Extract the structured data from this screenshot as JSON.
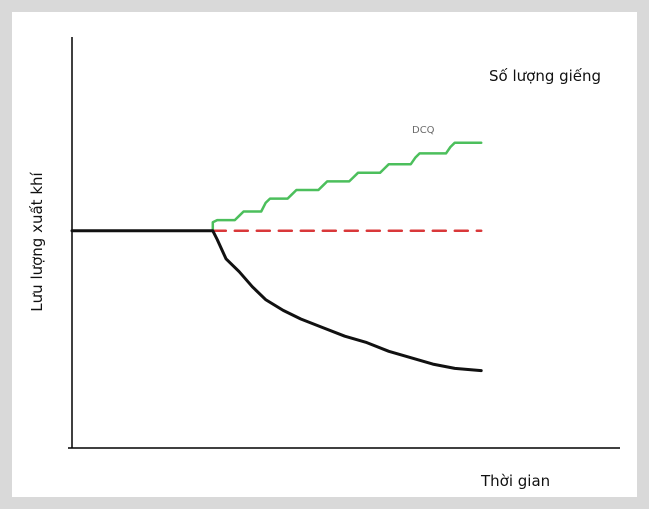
{
  "chart_data": {
    "type": "line",
    "xlabel": "Thời gian",
    "ylabel": "Lưu lượng xuất khí",
    "x_ticks": [],
    "y_ticks": [],
    "xlim": [
      0,
      100
    ],
    "ylim": [
      0,
      100
    ],
    "grid": false,
    "series": [
      {
        "name": "Số lượng giếng",
        "color": "#4cbf5c",
        "style": "solid",
        "points": [
          [
            32,
            101
          ],
          [
            32,
            105
          ],
          [
            33,
            106
          ],
          [
            37,
            106
          ],
          [
            38,
            108
          ],
          [
            39,
            110
          ],
          [
            43,
            110
          ],
          [
            44,
            114
          ],
          [
            45,
            116
          ],
          [
            49,
            116
          ],
          [
            50,
            118
          ],
          [
            51,
            120
          ],
          [
            56,
            120
          ],
          [
            57,
            122
          ],
          [
            58,
            124
          ],
          [
            63,
            124
          ],
          [
            64,
            126
          ],
          [
            65,
            128
          ],
          [
            70,
            128
          ],
          [
            71,
            130
          ],
          [
            72,
            132
          ],
          [
            77,
            132
          ],
          [
            78,
            135
          ],
          [
            79,
            137
          ],
          [
            85,
            137
          ],
          [
            86,
            140
          ],
          [
            87,
            142
          ],
          [
            93,
            142
          ]
        ]
      },
      {
        "name": "DCQ",
        "color": "#d9383a",
        "style": "dashed",
        "points": [
          [
            32,
            101
          ],
          [
            93,
            101
          ]
        ]
      },
      {
        "name": "",
        "color": "#111111",
        "style": "solid",
        "points": [
          [
            0,
            101
          ],
          [
            32,
            101
          ],
          [
            33,
            97
          ],
          [
            35,
            88
          ],
          [
            38,
            82
          ],
          [
            41,
            75
          ],
          [
            44,
            69
          ],
          [
            48,
            64
          ],
          [
            52,
            60
          ],
          [
            57,
            56
          ],
          [
            62,
            52
          ],
          [
            67,
            49
          ],
          [
            72,
            45
          ],
          [
            77,
            42
          ],
          [
            82,
            39
          ],
          [
            87,
            37
          ],
          [
            93,
            36
          ]
        ]
      }
    ],
    "annotations": [
      {
        "text": "DCQ",
        "x": 71,
        "y": 107
      }
    ],
    "legend": "none"
  }
}
